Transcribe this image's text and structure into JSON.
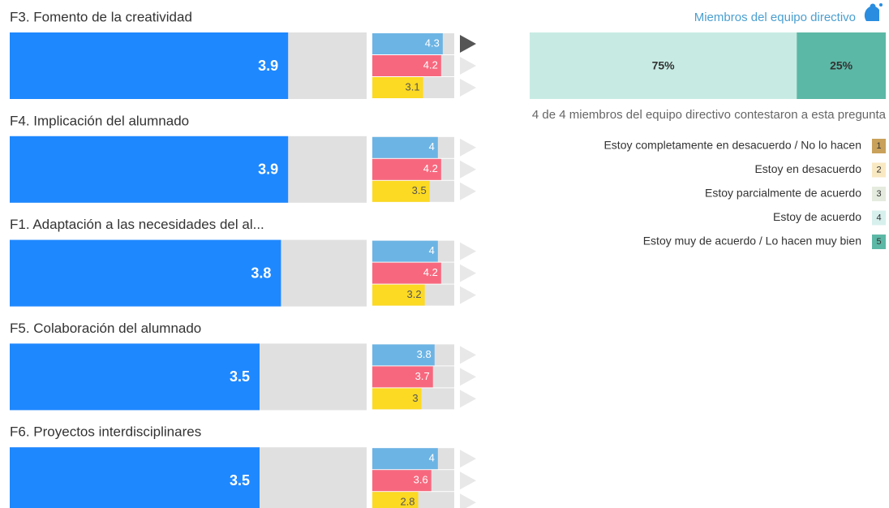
{
  "rows": [
    {
      "label": "F3. Fomento de la creatividad",
      "value": 3.9,
      "scores": [
        4.3,
        4.2,
        3.1
      ]
    },
    {
      "label": "F4. Implicación del alumnado",
      "value": 3.9,
      "scores": [
        4,
        4.2,
        3.5
      ]
    },
    {
      "label": "F1. Adaptación a las necesidades del al...",
      "value": 3.8,
      "scores": [
        4,
        4.2,
        3.2
      ]
    },
    {
      "label": "F5. Colaboración del alumnado",
      "value": 3.5,
      "scores": [
        3.8,
        3.7,
        3
      ]
    },
    {
      "label": "F6. Proyectos interdisciplinares",
      "value": 3.5,
      "scores": [
        4,
        3.6,
        2.8
      ]
    }
  ],
  "colors": {
    "main": "#1e88ff",
    "scores": [
      "#6cb4e4",
      "#f7687e",
      "#fcd923"
    ]
  },
  "panel": {
    "title": "Miembros del equipo directivo",
    "segments": [
      {
        "value": 75,
        "label": "75%",
        "color": "#c7ebe3"
      },
      {
        "value": 25,
        "label": "25%",
        "color": "#5cb8a6"
      }
    ],
    "note": "4 de 4 miembros del equipo directivo contestaron a esta pregunta"
  },
  "legend": [
    {
      "label": "Estoy completamente en desacuerdo / No lo hacen",
      "num": 1,
      "color": "#c9a15a"
    },
    {
      "label": "Estoy en desacuerdo",
      "num": 2,
      "color": "#f9e9c3"
    },
    {
      "label": "Estoy parcialmente de acuerdo",
      "num": 3,
      "color": "#e5ecdf"
    },
    {
      "label": "Estoy de acuerdo",
      "num": 4,
      "color": "#d7f0ee"
    },
    {
      "label": "Estoy muy de acuerdo / Lo hacen muy bien",
      "num": 5,
      "color": "#5cb8a6"
    }
  ]
}
